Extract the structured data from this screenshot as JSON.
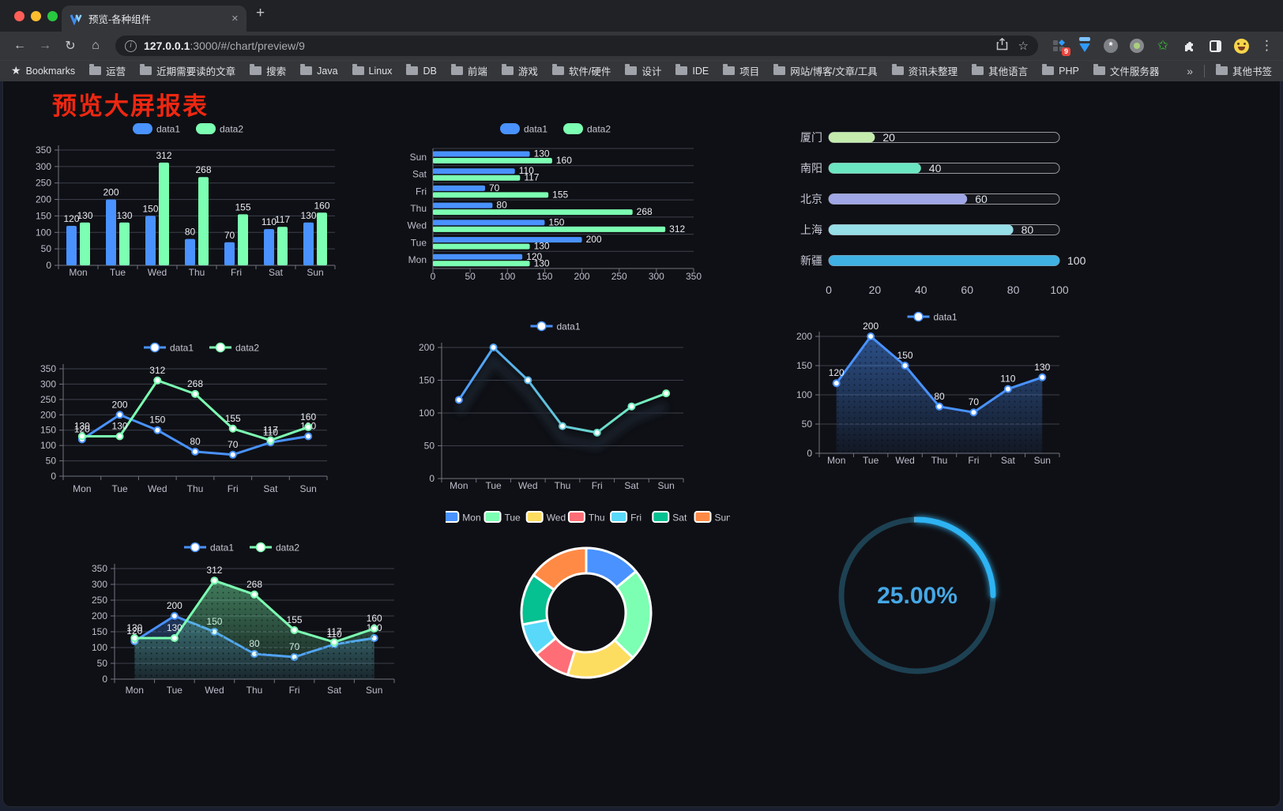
{
  "browser": {
    "tab_title": "预览-各种组件",
    "url_host": "127.0.0.1",
    "url_rest": ":3000/#/chart/preview/9",
    "bookmarks_label": "Bookmarks",
    "bookmarks": [
      "运营",
      "近期需要读的文章",
      "搜索",
      "Java",
      "Linux",
      "DB",
      "前端",
      "游戏",
      "软件/硬件",
      "设计",
      "IDE",
      "项目",
      "网站/博客/文章/工具",
      "资讯未整理",
      "其他语言",
      "PHP",
      "文件服务器"
    ],
    "overflow_chevron": "»",
    "other_bookmarks": "其他书签",
    "extension_badge": "9",
    "glyphs": {
      "close_tab": "✕",
      "new_tab": "+",
      "back": "←",
      "forward": "→",
      "reload": "↻",
      "home": "⌂",
      "star": "☆",
      "bookmark_star": "★",
      "menu": "⋮",
      "info": "i"
    }
  },
  "page": {
    "title": "预览大屏报表"
  },
  "chart_data": [
    {
      "id": "barV",
      "type": "bar",
      "categories": [
        "Mon",
        "Tue",
        "Wed",
        "Thu",
        "Fri",
        "Sat",
        "Sun"
      ],
      "series": [
        {
          "name": "data1",
          "color": "#4992ff",
          "values": [
            120,
            200,
            150,
            80,
            70,
            110,
            130
          ]
        },
        {
          "name": "data2",
          "color": "#7cffb2",
          "values": [
            130,
            130,
            312,
            268,
            155,
            117,
            160
          ]
        }
      ],
      "ylim": [
        0,
        350
      ],
      "yticks": [
        0,
        50,
        100,
        150,
        200,
        250,
        300,
        350
      ],
      "value_labels": true
    },
    {
      "id": "barH",
      "type": "bar-horizontal",
      "categories": [
        "Mon",
        "Tue",
        "Wed",
        "Thu",
        "Fri",
        "Sat",
        "Sun"
      ],
      "series": [
        {
          "name": "data1",
          "color": "#4992ff",
          "values": [
            120,
            200,
            150,
            80,
            70,
            110,
            130
          ]
        },
        {
          "name": "data2",
          "color": "#7cffb2",
          "values": [
            130,
            130,
            312,
            268,
            155,
            117,
            160
          ]
        }
      ],
      "xlim": [
        0,
        350
      ],
      "xticks": [
        0,
        50,
        100,
        150,
        200,
        250,
        300,
        350
      ],
      "value_labels": true
    },
    {
      "id": "progress",
      "type": "progress-bars",
      "max": 100,
      "xticks": [
        0,
        20,
        40,
        60,
        80,
        100
      ],
      "items": [
        {
          "label": "厦门",
          "value": 20,
          "color": "#c4ebad"
        },
        {
          "label": "南阳",
          "value": 40,
          "color": "#6be6c1"
        },
        {
          "label": "北京",
          "value": 60,
          "color": "#a0a7e6"
        },
        {
          "label": "上海",
          "value": 80,
          "color": "#96dee8"
        },
        {
          "label": "新疆",
          "value": 100,
          "color": "#3fb1e3"
        }
      ]
    },
    {
      "id": "lineTwo",
      "type": "line",
      "categories": [
        "Mon",
        "Tue",
        "Wed",
        "Thu",
        "Fri",
        "Sat",
        "Sun"
      ],
      "series": [
        {
          "name": "data1",
          "color": "#4992ff",
          "values": [
            120,
            200,
            150,
            80,
            70,
            110,
            130
          ]
        },
        {
          "name": "data2",
          "color": "#7cffb2",
          "values": [
            130,
            130,
            312,
            268,
            155,
            117,
            160
          ]
        }
      ],
      "ylim": [
        0,
        350
      ],
      "yticks": [
        0,
        50,
        100,
        150,
        200,
        250,
        300,
        350
      ],
      "value_labels": true
    },
    {
      "id": "lineGrad",
      "type": "line",
      "categories": [
        "Mon",
        "Tue",
        "Wed",
        "Thu",
        "Fri",
        "Sat",
        "Sun"
      ],
      "series": [
        {
          "name": "data1",
          "color": "#4992ff",
          "gradient": [
            "#4992ff",
            "#7cffb2"
          ],
          "shadow": true,
          "values": [
            120,
            200,
            150,
            80,
            70,
            110,
            130
          ]
        }
      ],
      "ylim": [
        0,
        200
      ],
      "yticks": [
        0,
        50,
        100,
        150,
        200
      ],
      "value_labels": false
    },
    {
      "id": "areaOne",
      "type": "line",
      "categories": [
        "Mon",
        "Tue",
        "Wed",
        "Thu",
        "Fri",
        "Sat",
        "Sun"
      ],
      "series": [
        {
          "name": "data1",
          "color": "#4992ff",
          "area": true,
          "values": [
            120,
            200,
            150,
            80,
            70,
            110,
            130
          ]
        }
      ],
      "ylim": [
        0,
        200
      ],
      "yticks": [
        0,
        50,
        100,
        150,
        200
      ],
      "value_labels": true
    },
    {
      "id": "areaTwo",
      "type": "line",
      "categories": [
        "Mon",
        "Tue",
        "Wed",
        "Thu",
        "Fri",
        "Sat",
        "Sun"
      ],
      "series": [
        {
          "name": "data1",
          "color": "#4992ff",
          "area": true,
          "values": [
            120,
            200,
            150,
            80,
            70,
            110,
            130
          ]
        },
        {
          "name": "data2",
          "color": "#7cffb2",
          "area": true,
          "values": [
            130,
            130,
            312,
            268,
            155,
            117,
            160
          ]
        }
      ],
      "ylim": [
        0,
        350
      ],
      "yticks": [
        0,
        50,
        100,
        150,
        200,
        250,
        300,
        350
      ],
      "value_labels": true
    },
    {
      "id": "donut",
      "type": "pie",
      "labels": [
        "Mon",
        "Tue",
        "Wed",
        "Thu",
        "Fri",
        "Sat",
        "Sun"
      ],
      "values": [
        120,
        200,
        150,
        80,
        70,
        110,
        130
      ],
      "colors": [
        "#4992ff",
        "#7cffb2",
        "#fddd60",
        "#ff6e76",
        "#58d9f9",
        "#05c091",
        "#ff8a45"
      ],
      "border_color": "#ffffff"
    },
    {
      "id": "gauge",
      "type": "gauge",
      "value": 25,
      "display": "25.00%",
      "color": "#2fb3f3",
      "track_color": "#1d4152",
      "text_color": "#45a8e6"
    }
  ]
}
